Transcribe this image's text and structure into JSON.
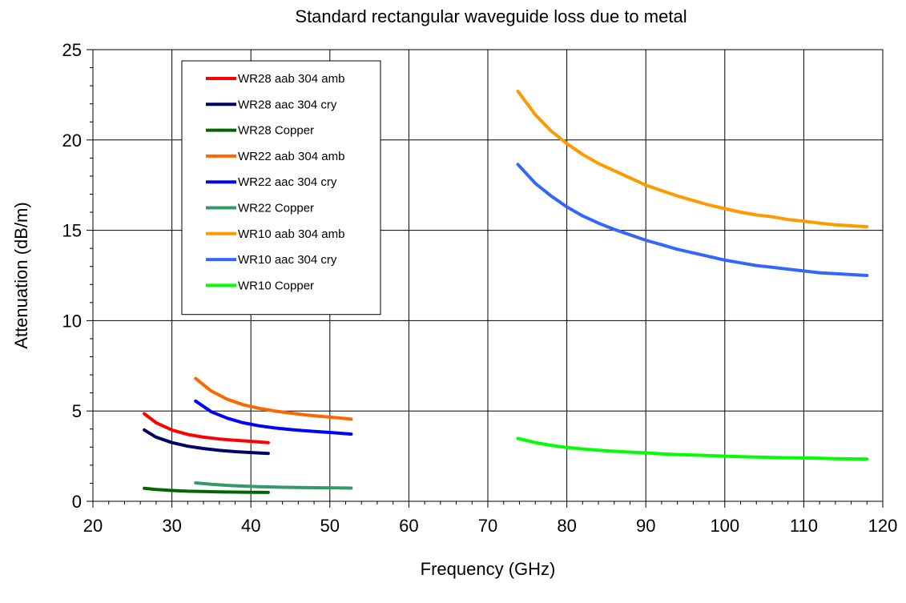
{
  "chart_data": {
    "type": "line",
    "title": "Standard rectangular waveguide loss due to metal",
    "xlabel": "Frequency (GHz)",
    "ylabel": "Attenuation (dB/m)",
    "xlim": [
      20,
      120
    ],
    "ylim": [
      0,
      25
    ],
    "x_ticks": [
      20,
      30,
      40,
      50,
      60,
      70,
      80,
      90,
      100,
      110,
      120
    ],
    "y_ticks": [
      0,
      5,
      10,
      15,
      20,
      25
    ],
    "x_minor_step": 2,
    "y_minor_step": 1,
    "grid": true,
    "legend_position": "top-left-inside",
    "series": [
      {
        "name": "WR28 aab 304 amb",
        "color": "#ff0000",
        "x": [
          26.5,
          28,
          30,
          32,
          34,
          36,
          38,
          40,
          42.2
        ],
        "y": [
          4.85,
          4.35,
          3.95,
          3.7,
          3.55,
          3.45,
          3.38,
          3.32,
          3.25
        ]
      },
      {
        "name": "WR28 aac 304 cry",
        "color": "#000066",
        "x": [
          26.5,
          28,
          30,
          32,
          34,
          36,
          38,
          40,
          42.2
        ],
        "y": [
          3.95,
          3.55,
          3.25,
          3.05,
          2.92,
          2.82,
          2.75,
          2.7,
          2.65
        ]
      },
      {
        "name": "WR28 Copper",
        "color": "#006600",
        "x": [
          26.5,
          28,
          30,
          32,
          34,
          36,
          38,
          40,
          42.2
        ],
        "y": [
          0.72,
          0.65,
          0.6,
          0.56,
          0.54,
          0.52,
          0.51,
          0.5,
          0.49
        ]
      },
      {
        "name": "WR22 aab 304 amb",
        "color": "#ff6600",
        "x": [
          33,
          35,
          37,
          39,
          41,
          43,
          45,
          47,
          49,
          51,
          52.7
        ],
        "y": [
          6.8,
          6.1,
          5.65,
          5.35,
          5.15,
          5.0,
          4.88,
          4.78,
          4.7,
          4.62,
          4.55
        ]
      },
      {
        "name": "WR22 aac 304 cry",
        "color": "#0000ff",
        "x": [
          33,
          35,
          37,
          39,
          41,
          43,
          45,
          47,
          49,
          51,
          52.7
        ],
        "y": [
          5.55,
          4.95,
          4.6,
          4.35,
          4.18,
          4.06,
          3.97,
          3.9,
          3.84,
          3.78,
          3.72
        ]
      },
      {
        "name": "WR22 Copper",
        "color": "#339966",
        "x": [
          33,
          35,
          37,
          39,
          41,
          43,
          45,
          47,
          49,
          51,
          52.7
        ],
        "y": [
          1.02,
          0.94,
          0.88,
          0.84,
          0.81,
          0.79,
          0.77,
          0.76,
          0.75,
          0.74,
          0.73
        ]
      },
      {
        "name": "WR10 aab 304 amb",
        "color": "#ff9900",
        "x": [
          73.8,
          76,
          78,
          80,
          82,
          84,
          86,
          88,
          90,
          92,
          94,
          96,
          98,
          100,
          102,
          104,
          106,
          108,
          110,
          112,
          114,
          116,
          118
        ],
        "y": [
          22.7,
          21.4,
          20.5,
          19.8,
          19.2,
          18.7,
          18.3,
          17.9,
          17.5,
          17.2,
          16.9,
          16.65,
          16.4,
          16.2,
          16.0,
          15.85,
          15.75,
          15.6,
          15.5,
          15.4,
          15.3,
          15.25,
          15.2
        ]
      },
      {
        "name": "WR10 aac 304 cry",
        "color": "#3366ff",
        "x": [
          73.8,
          76,
          78,
          80,
          82,
          84,
          86,
          88,
          90,
          92,
          94,
          96,
          98,
          100,
          102,
          104,
          106,
          108,
          110,
          112,
          114,
          116,
          118
        ],
        "y": [
          18.65,
          17.6,
          16.9,
          16.3,
          15.8,
          15.4,
          15.05,
          14.75,
          14.45,
          14.2,
          13.95,
          13.75,
          13.55,
          13.35,
          13.2,
          13.05,
          12.95,
          12.85,
          12.75,
          12.65,
          12.6,
          12.55,
          12.5
        ]
      },
      {
        "name": "WR10 Copper",
        "color": "#00ff00",
        "x": [
          73.8,
          76,
          78,
          80,
          82,
          84,
          86,
          88,
          90,
          92,
          94,
          96,
          98,
          100,
          102,
          104,
          106,
          108,
          110,
          112,
          114,
          116,
          118
        ],
        "y": [
          3.48,
          3.25,
          3.1,
          2.98,
          2.9,
          2.83,
          2.77,
          2.72,
          2.68,
          2.63,
          2.59,
          2.56,
          2.53,
          2.5,
          2.47,
          2.45,
          2.43,
          2.41,
          2.4,
          2.38,
          2.36,
          2.35,
          2.34
        ]
      }
    ]
  }
}
